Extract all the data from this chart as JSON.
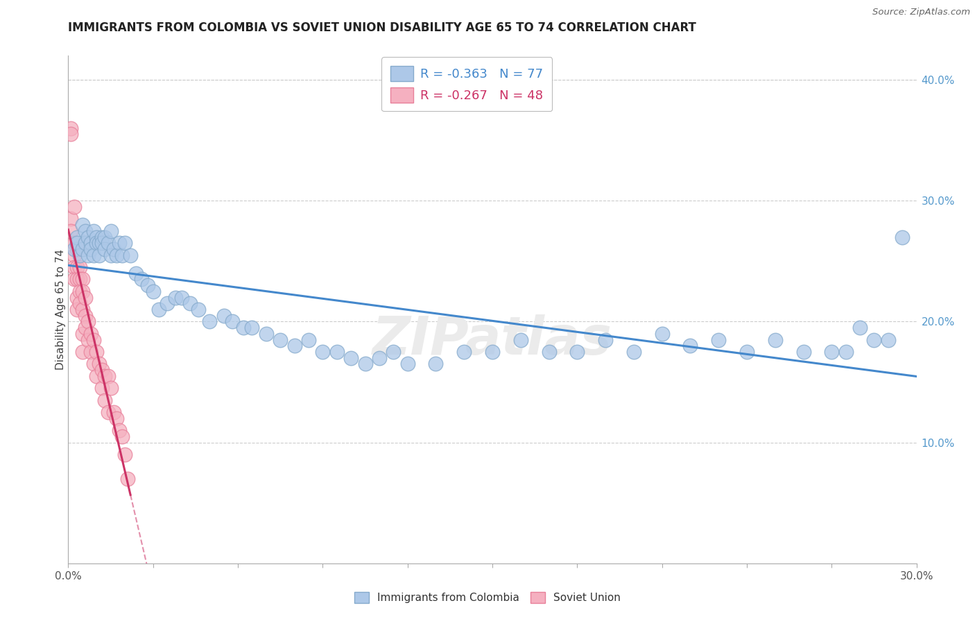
{
  "title": "IMMIGRANTS FROM COLOMBIA VS SOVIET UNION DISABILITY AGE 65 TO 74 CORRELATION CHART",
  "source": "Source: ZipAtlas.com",
  "ylabel": "Disability Age 65 to 74",
  "right_yticks": [
    "10.0%",
    "20.0%",
    "30.0%",
    "40.0%"
  ],
  "right_ytick_vals": [
    0.1,
    0.2,
    0.3,
    0.4
  ],
  "xlim": [
    0.0,
    0.3
  ],
  "ylim": [
    0.0,
    0.42
  ],
  "legend_colombia_r": "-0.363",
  "legend_colombia_n": "77",
  "legend_soviet_r": "-0.267",
  "legend_soviet_n": "48",
  "watermark": "ZIPatlas",
  "colombia_color": "#adc8e8",
  "colombia_edge": "#85aacc",
  "soviet_color": "#f5b0c0",
  "soviet_edge": "#e8809a",
  "trend_colombia_color": "#4488cc",
  "trend_soviet_color": "#cc3366",
  "colombia_points_x": [
    0.002,
    0.003,
    0.003,
    0.004,
    0.005,
    0.005,
    0.006,
    0.006,
    0.007,
    0.007,
    0.008,
    0.008,
    0.009,
    0.009,
    0.01,
    0.01,
    0.011,
    0.011,
    0.012,
    0.012,
    0.013,
    0.013,
    0.014,
    0.015,
    0.015,
    0.016,
    0.017,
    0.018,
    0.019,
    0.02,
    0.022,
    0.024,
    0.026,
    0.028,
    0.03,
    0.032,
    0.035,
    0.038,
    0.04,
    0.043,
    0.046,
    0.05,
    0.055,
    0.058,
    0.062,
    0.065,
    0.07,
    0.075,
    0.08,
    0.085,
    0.09,
    0.095,
    0.1,
    0.105,
    0.11,
    0.115,
    0.12,
    0.13,
    0.14,
    0.15,
    0.16,
    0.17,
    0.18,
    0.19,
    0.2,
    0.21,
    0.22,
    0.23,
    0.24,
    0.25,
    0.26,
    0.27,
    0.275,
    0.28,
    0.285,
    0.29,
    0.295
  ],
  "colombia_points_y": [
    0.26,
    0.27,
    0.265,
    0.255,
    0.28,
    0.26,
    0.275,
    0.265,
    0.27,
    0.255,
    0.265,
    0.26,
    0.275,
    0.255,
    0.27,
    0.265,
    0.265,
    0.255,
    0.27,
    0.265,
    0.27,
    0.26,
    0.265,
    0.275,
    0.255,
    0.26,
    0.255,
    0.265,
    0.255,
    0.265,
    0.255,
    0.24,
    0.235,
    0.23,
    0.225,
    0.21,
    0.215,
    0.22,
    0.22,
    0.215,
    0.21,
    0.2,
    0.205,
    0.2,
    0.195,
    0.195,
    0.19,
    0.185,
    0.18,
    0.185,
    0.175,
    0.175,
    0.17,
    0.165,
    0.17,
    0.175,
    0.165,
    0.165,
    0.175,
    0.175,
    0.185,
    0.175,
    0.175,
    0.185,
    0.175,
    0.19,
    0.18,
    0.185,
    0.175,
    0.185,
    0.175,
    0.175,
    0.175,
    0.195,
    0.185,
    0.185,
    0.27
  ],
  "soviet_points_x": [
    0.001,
    0.001,
    0.001,
    0.001,
    0.002,
    0.002,
    0.002,
    0.002,
    0.002,
    0.003,
    0.003,
    0.003,
    0.003,
    0.003,
    0.004,
    0.004,
    0.004,
    0.004,
    0.005,
    0.005,
    0.005,
    0.005,
    0.005,
    0.006,
    0.006,
    0.006,
    0.007,
    0.007,
    0.008,
    0.008,
    0.009,
    0.009,
    0.01,
    0.01,
    0.011,
    0.012,
    0.012,
    0.013,
    0.013,
    0.014,
    0.014,
    0.015,
    0.016,
    0.017,
    0.018,
    0.019,
    0.02,
    0.021
  ],
  "soviet_points_y": [
    0.36,
    0.355,
    0.285,
    0.275,
    0.295,
    0.265,
    0.255,
    0.245,
    0.235,
    0.26,
    0.245,
    0.235,
    0.22,
    0.21,
    0.245,
    0.235,
    0.225,
    0.215,
    0.235,
    0.225,
    0.21,
    0.19,
    0.175,
    0.22,
    0.205,
    0.195,
    0.2,
    0.185,
    0.19,
    0.175,
    0.185,
    0.165,
    0.175,
    0.155,
    0.165,
    0.16,
    0.145,
    0.155,
    0.135,
    0.155,
    0.125,
    0.145,
    0.125,
    0.12,
    0.11,
    0.105,
    0.09,
    0.07
  ]
}
